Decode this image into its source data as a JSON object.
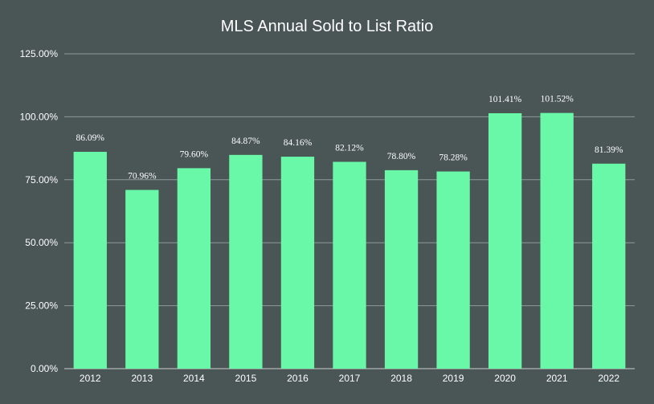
{
  "chart_data": {
    "type": "bar",
    "title": "MLS Annual Sold to List Ratio",
    "xlabel": "",
    "ylabel": "",
    "categories": [
      "2012",
      "2013",
      "2014",
      "2015",
      "2016",
      "2017",
      "2018",
      "2019",
      "2020",
      "2021",
      "2022"
    ],
    "values": [
      86.09,
      70.96,
      79.6,
      84.87,
      84.16,
      82.12,
      78.8,
      78.28,
      101.41,
      101.52,
      81.39
    ],
    "data_labels": [
      "86.09%",
      "70.96%",
      "79.60%",
      "84.87%",
      "84.16%",
      "82.12%",
      "78.80%",
      "78.28%",
      "101.41%",
      "101.52%",
      "81.39%"
    ],
    "ylim": [
      0,
      125
    ],
    "y_ticks": [
      0,
      25,
      50,
      75,
      100,
      125
    ],
    "y_tick_labels": [
      "0.00%",
      "25.00%",
      "50.00%",
      "75.00%",
      "100.00%",
      "125.00%"
    ],
    "grid": true,
    "legend": "none",
    "colors": {
      "background": "#4a5555",
      "bar": "#69f7a8",
      "text": "#ffffff",
      "grid": "#8e9a9a"
    }
  }
}
